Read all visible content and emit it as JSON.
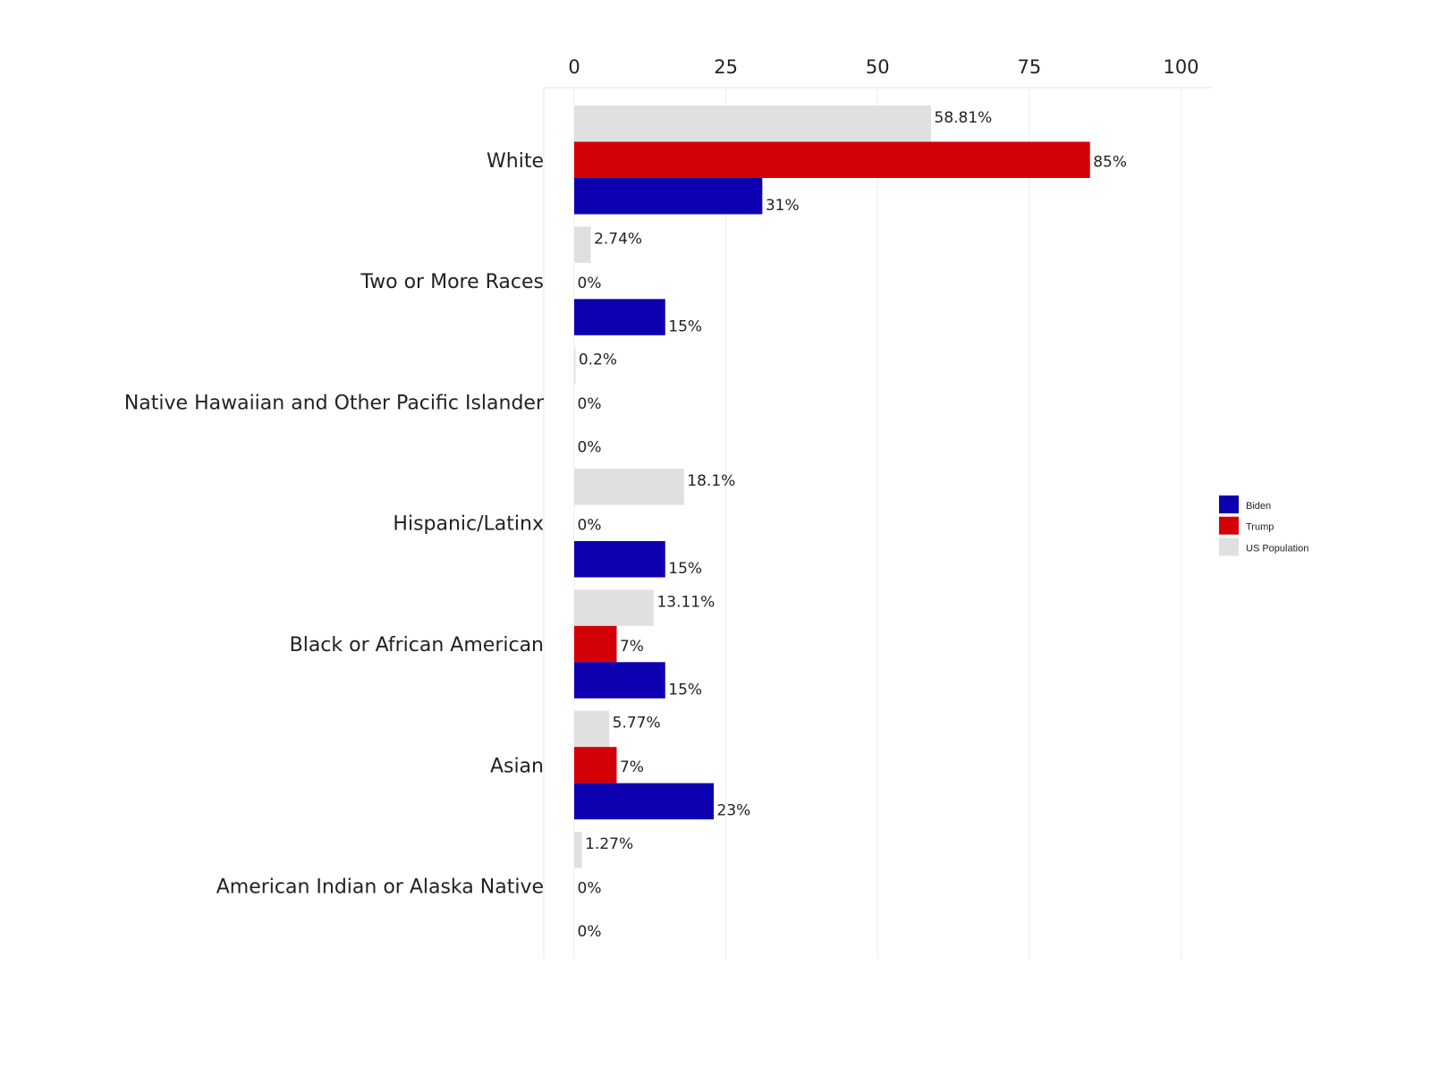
{
  "chart_data": {
    "type": "bar",
    "orientation": "horizontal",
    "title": "",
    "xlabel": "",
    "ylabel": "",
    "xlim": [
      0,
      100
    ],
    "x_ticks": [
      0,
      25,
      50,
      75,
      100
    ],
    "x_axis_position": "top",
    "grid": true,
    "legend_position": "right",
    "categories": [
      "White",
      "Two or More Races",
      "Native Hawaiian and Other Pacific Islander",
      "Hispanic/Latinx",
      "Black or African American",
      "Asian",
      "American Indian or Alaska Native"
    ],
    "series": [
      {
        "name": "US Population",
        "color": "#e0e0e0",
        "values": [
          58.81,
          2.74,
          0.2,
          18.1,
          13.11,
          5.77,
          1.27
        ],
        "labels": [
          "58.81%",
          "2.74%",
          "0.2%",
          "18.1%",
          "13.11%",
          "5.77%",
          "1.27%"
        ]
      },
      {
        "name": "Trump",
        "color": "#d40007",
        "values": [
          85,
          0,
          0,
          0,
          7,
          7,
          0
        ],
        "labels": [
          "85%",
          "0%",
          "0%",
          "0%",
          "7%",
          "7%",
          "0%"
        ]
      },
      {
        "name": "Biden",
        "color": "#0d00b0",
        "values": [
          31,
          15,
          0,
          15,
          15,
          23,
          0
        ],
        "labels": [
          "31%",
          "15%",
          "0%",
          "15%",
          "15%",
          "23%",
          "0%"
        ]
      }
    ],
    "legend_order": [
      "Biden",
      "Trump",
      "US Population"
    ]
  }
}
